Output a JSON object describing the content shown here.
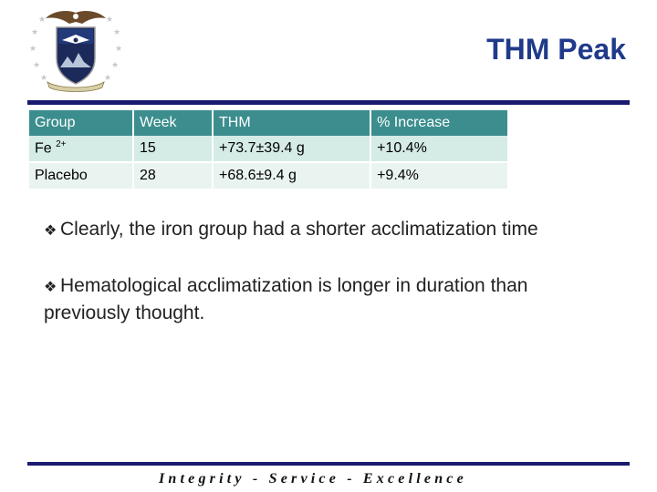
{
  "header": {
    "title": "THM Peak",
    "logo_icon": "air-force-academy-seal-icon"
  },
  "table": {
    "columns": [
      "Group",
      "Week",
      "THM",
      "% Increase"
    ],
    "rows": [
      {
        "group": "Fe",
        "group_sup": "2+",
        "week": "15",
        "thm": "+73.7±39.4 g",
        "increase": "+10.4%"
      },
      {
        "group": "Placebo",
        "group_sup": "",
        "week": "28",
        "thm": "+68.6±9.4 g",
        "increase": "+9.4%"
      }
    ]
  },
  "bullets": {
    "marker": "❖",
    "items": [
      "Clearly, the iron group had a shorter acclimatization time",
      "Hematological acclimatization is longer in duration than previously thought."
    ]
  },
  "footer": {
    "motto": "Integrity - Service - Excellence"
  },
  "colors": {
    "title": "#1f3a8a",
    "table_header": "#3c8e8e",
    "row_1": "#d4ebe6",
    "row_2": "#e9f4f1",
    "rule": "#1a1a6e"
  }
}
